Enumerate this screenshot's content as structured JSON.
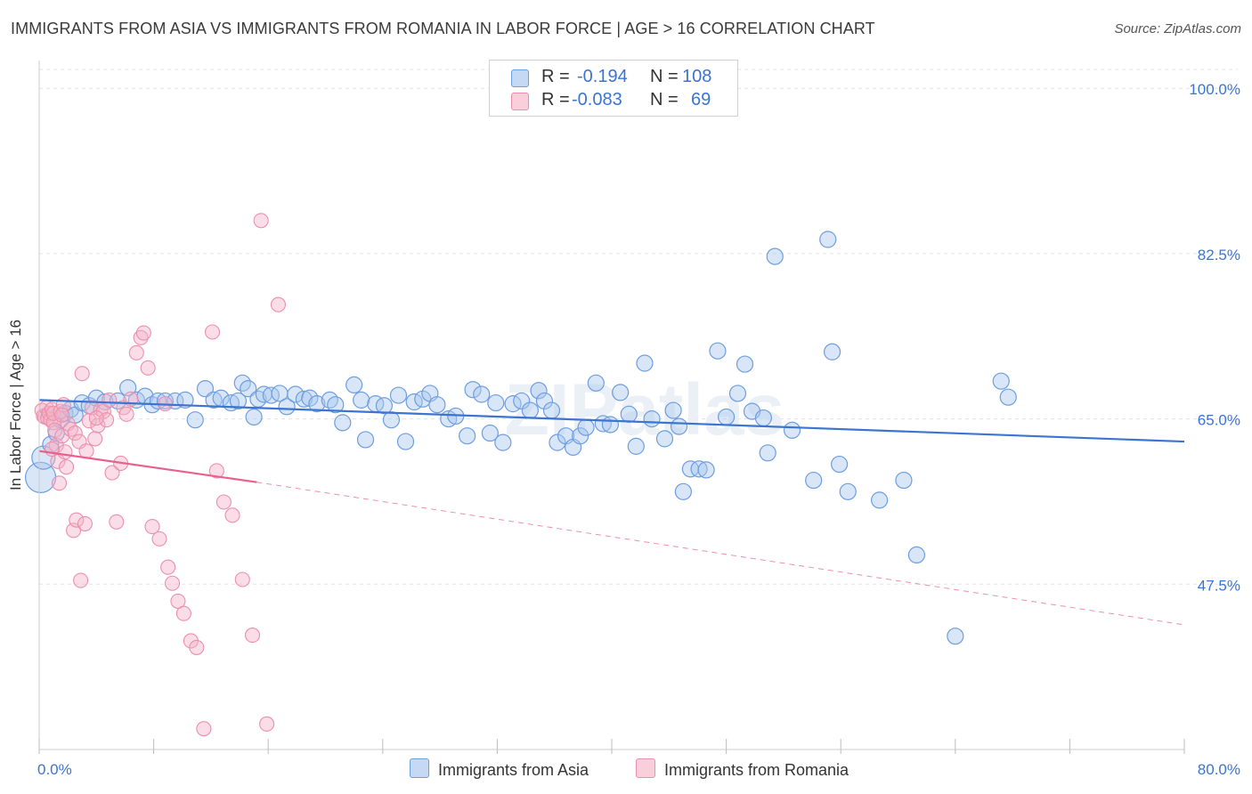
{
  "title": "IMMIGRANTS FROM ASIA VS IMMIGRANTS FROM ROMANIA IN LABOR FORCE | AGE > 16 CORRELATION CHART",
  "source_label": "Source: ZipAtlas.com",
  "watermark": "ZIPatlas",
  "stats": {
    "asia": {
      "r_label": "R =",
      "r_value": "-0.194",
      "n_label": "N =",
      "n_value": "108"
    },
    "romania": {
      "r_label": "R =",
      "r_value": "-0.083",
      "n_label": "N =",
      "n_value": "69"
    }
  },
  "legend": {
    "asia": "Immigrants from Asia",
    "romania": "Immigrants from Romania"
  },
  "colors": {
    "asia_fill": "#a9c7ee",
    "asia_stroke": "#6d9ee0",
    "asia_line": "#3b74d1",
    "romania_fill": "#f5b3c8",
    "romania_stroke": "#ec8fae",
    "romania_line": "#e8618c",
    "axis_text": "#3b74d1",
    "grid": "#e3e3e3"
  },
  "chart_data": {
    "type": "scatter",
    "title": "IMMIGRANTS FROM ASIA VS IMMIGRANTS FROM ROMANIA IN LABOR FORCE | AGE > 16 CORRELATION CHART",
    "xlabel": "",
    "ylabel": "In Labor Force | Age > 16",
    "xlim": [
      0,
      80
    ],
    "ylim": [
      30,
      102
    ],
    "x_tick_labels": [
      "0.0%",
      "80.0%"
    ],
    "y_ticks": [
      47.5,
      65.0,
      82.5,
      100.0
    ],
    "y_tick_labels": [
      "47.5%",
      "65.0%",
      "82.5%",
      "100.0%"
    ],
    "grid": true,
    "legend_position": "bottom",
    "series": [
      {
        "name": "Immigrants from Asia",
        "points": [
          [
            0.1,
            58.8
          ],
          [
            0.3,
            60.9
          ],
          [
            0.8,
            62.3
          ],
          [
            1.2,
            63.5
          ],
          [
            1.5,
            64.9
          ],
          [
            1.8,
            65.6
          ],
          [
            2.2,
            66.0
          ],
          [
            2.5,
            65.4
          ],
          [
            3.0,
            66.7
          ],
          [
            3.5,
            66.4
          ],
          [
            4.0,
            67.2
          ],
          [
            4.6,
            66.8
          ],
          [
            5.5,
            66.9
          ],
          [
            6.2,
            68.3
          ],
          [
            6.8,
            67.0
          ],
          [
            7.4,
            67.4
          ],
          [
            7.9,
            66.5
          ],
          [
            8.3,
            66.9
          ],
          [
            8.8,
            66.9
          ],
          [
            9.5,
            66.9
          ],
          [
            10.2,
            67.0
          ],
          [
            10.9,
            64.9
          ],
          [
            11.6,
            68.2
          ],
          [
            12.2,
            67.0
          ],
          [
            12.7,
            67.2
          ],
          [
            13.4,
            66.7
          ],
          [
            13.9,
            66.9
          ],
          [
            14.2,
            68.8
          ],
          [
            14.6,
            68.2
          ],
          [
            15.0,
            65.2
          ],
          [
            15.3,
            67.1
          ],
          [
            15.7,
            67.6
          ],
          [
            16.2,
            67.5
          ],
          [
            16.8,
            67.7
          ],
          [
            17.3,
            66.3
          ],
          [
            17.9,
            67.6
          ],
          [
            18.5,
            67.1
          ],
          [
            18.9,
            67.2
          ],
          [
            19.4,
            66.6
          ],
          [
            20.3,
            67.0
          ],
          [
            20.7,
            66.5
          ],
          [
            21.2,
            64.6
          ],
          [
            22.0,
            68.6
          ],
          [
            22.5,
            67.0
          ],
          [
            22.8,
            62.8
          ],
          [
            23.5,
            66.6
          ],
          [
            24.1,
            66.4
          ],
          [
            24.6,
            64.9
          ],
          [
            25.1,
            67.5
          ],
          [
            25.6,
            62.6
          ],
          [
            26.2,
            66.8
          ],
          [
            26.8,
            67.1
          ],
          [
            27.3,
            67.7
          ],
          [
            27.8,
            66.5
          ],
          [
            28.6,
            65.0
          ],
          [
            29.1,
            65.3
          ],
          [
            29.9,
            63.2
          ],
          [
            30.3,
            68.1
          ],
          [
            30.9,
            67.6
          ],
          [
            31.5,
            63.5
          ],
          [
            31.9,
            66.7
          ],
          [
            32.4,
            62.5
          ],
          [
            33.1,
            66.6
          ],
          [
            33.7,
            66.9
          ],
          [
            34.3,
            65.9
          ],
          [
            34.9,
            68.0
          ],
          [
            35.3,
            66.9
          ],
          [
            35.8,
            65.9
          ],
          [
            36.2,
            62.5
          ],
          [
            36.8,
            63.2
          ],
          [
            37.3,
            62.0
          ],
          [
            37.8,
            63.2
          ],
          [
            38.2,
            64.1
          ],
          [
            38.9,
            68.8
          ],
          [
            39.4,
            64.5
          ],
          [
            39.9,
            64.4
          ],
          [
            40.6,
            67.8
          ],
          [
            41.2,
            65.5
          ],
          [
            41.7,
            62.1
          ],
          [
            42.3,
            70.9
          ],
          [
            42.8,
            65.0
          ],
          [
            43.7,
            62.9
          ],
          [
            44.3,
            65.9
          ],
          [
            44.7,
            64.2
          ],
          [
            45.0,
            57.3
          ],
          [
            45.5,
            59.7
          ],
          [
            46.1,
            59.7
          ],
          [
            46.6,
            59.6
          ],
          [
            47.4,
            72.2
          ],
          [
            48.0,
            65.2
          ],
          [
            48.8,
            67.7
          ],
          [
            49.3,
            70.8
          ],
          [
            49.8,
            65.8
          ],
          [
            50.6,
            65.1
          ],
          [
            50.9,
            61.4
          ],
          [
            51.4,
            82.2
          ],
          [
            52.6,
            63.8
          ],
          [
            54.1,
            58.5
          ],
          [
            55.1,
            84.0
          ],
          [
            55.4,
            72.1
          ],
          [
            55.9,
            60.2
          ],
          [
            56.5,
            57.3
          ],
          [
            58.7,
            56.4
          ],
          [
            60.4,
            58.5
          ],
          [
            61.3,
            50.6
          ],
          [
            64.0,
            42.0
          ],
          [
            67.2,
            69.0
          ],
          [
            67.7,
            67.3
          ]
        ]
      },
      {
        "name": "Immigrants from Romania",
        "points": [
          [
            0.2,
            65.9
          ],
          [
            0.3,
            65.3
          ],
          [
            0.4,
            65.2
          ],
          [
            0.5,
            66.2
          ],
          [
            0.6,
            65.1
          ],
          [
            0.7,
            65.6
          ],
          [
            0.8,
            64.9
          ],
          [
            0.9,
            66.0
          ],
          [
            1.0,
            64.6
          ],
          [
            1.0,
            65.6
          ],
          [
            1.1,
            63.8
          ],
          [
            1.2,
            62.2
          ],
          [
            1.3,
            60.5
          ],
          [
            1.4,
            58.2
          ],
          [
            1.5,
            65.8
          ],
          [
            1.6,
            63.2
          ],
          [
            1.7,
            66.5
          ],
          [
            1.8,
            61.5
          ],
          [
            1.9,
            59.9
          ],
          [
            2.0,
            64.5
          ],
          [
            2.2,
            63.9
          ],
          [
            2.4,
            53.2
          ],
          [
            2.5,
            63.5
          ],
          [
            2.6,
            54.3
          ],
          [
            2.8,
            62.6
          ],
          [
            3.0,
            69.8
          ],
          [
            3.2,
            53.9
          ],
          [
            3.3,
            61.6
          ],
          [
            3.5,
            64.8
          ],
          [
            3.7,
            66.2
          ],
          [
            3.9,
            62.9
          ],
          [
            4.1,
            64.3
          ],
          [
            4.3,
            66.0
          ],
          [
            4.5,
            65.8
          ],
          [
            4.7,
            64.9
          ],
          [
            4.9,
            67.0
          ],
          [
            5.1,
            59.3
          ],
          [
            5.4,
            54.1
          ],
          [
            5.7,
            60.3
          ],
          [
            5.9,
            66.2
          ],
          [
            6.1,
            65.5
          ],
          [
            6.4,
            67.1
          ],
          [
            6.8,
            72.0
          ],
          [
            7.1,
            73.6
          ],
          [
            7.3,
            74.1
          ],
          [
            7.6,
            70.4
          ],
          [
            7.9,
            53.6
          ],
          [
            8.4,
            52.3
          ],
          [
            9.0,
            49.3
          ],
          [
            9.3,
            47.6
          ],
          [
            9.7,
            45.7
          ],
          [
            10.1,
            44.4
          ],
          [
            10.6,
            41.5
          ],
          [
            11.0,
            40.8
          ],
          [
            11.5,
            32.2
          ],
          [
            12.1,
            74.2
          ],
          [
            12.4,
            59.5
          ],
          [
            12.9,
            56.2
          ],
          [
            13.5,
            54.8
          ],
          [
            14.2,
            48.0
          ],
          [
            14.9,
            42.1
          ],
          [
            15.5,
            86.0
          ],
          [
            15.9,
            32.7
          ],
          [
            16.7,
            77.1
          ],
          [
            8.8,
            66.6
          ],
          [
            4.0,
            65.1
          ],
          [
            2.9,
            47.9
          ],
          [
            1.6,
            65.4
          ],
          [
            0.9,
            61.8
          ]
        ]
      }
    ],
    "trendlines": [
      {
        "series": "Immigrants from Asia",
        "x": [
          0,
          80
        ],
        "y": [
          67.0,
          62.6
        ]
      },
      {
        "series": "Immigrants from Romania",
        "x": [
          0,
          15.2
        ],
        "y": [
          61.6,
          58.3
        ],
        "dashed_extension": {
          "x": [
            15.2,
            80
          ],
          "y": [
            58.3,
            43.2
          ]
        }
      }
    ]
  }
}
